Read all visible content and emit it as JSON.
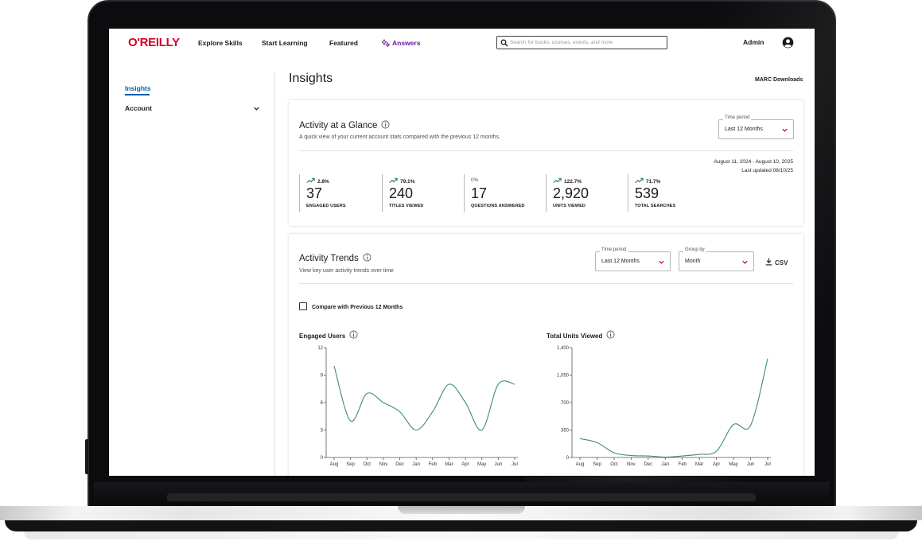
{
  "header": {
    "logo": "O'REILLY",
    "nav": [
      "Explore Skills",
      "Start Learning",
      "Featured",
      "Answers"
    ],
    "search_placeholder": "Search for books, courses, events, and more",
    "admin_label": "Admin"
  },
  "sidebar": {
    "items": [
      {
        "label": "Insights",
        "active": true
      },
      {
        "label": "Account",
        "expandable": true
      }
    ]
  },
  "page": {
    "title": "Insights",
    "marc_link": "MARC Downloads"
  },
  "glance": {
    "title": "Activity at a Glance",
    "subtitle": "A quick view of your current account stats compared with the previous 12 months.",
    "time_period": {
      "label": "Time period",
      "value": "Last 12 Months"
    },
    "date_range": "August 11, 2024 - August 10, 2025",
    "last_updated": "Last updated 08/10/25",
    "stats": [
      {
        "trend": "2.8%",
        "up": true,
        "value": "37",
        "label": "ENGAGED USERS"
      },
      {
        "trend": "79.1%",
        "up": true,
        "value": "240",
        "label": "TITLES VIEWED"
      },
      {
        "trend": "0%",
        "up": false,
        "value": "17",
        "label": "QUESTIONS ANSWERED"
      },
      {
        "trend": "122.7%",
        "up": true,
        "value": "2,920",
        "label": "UNITS VIEWED"
      },
      {
        "trend": "71.7%",
        "up": true,
        "value": "539",
        "label": "TOTAL SEARCHES"
      }
    ]
  },
  "trends": {
    "title": "Activity Trends",
    "subtitle": "View key user activity trends over time",
    "time_period": {
      "label": "Time period",
      "value": "Last 12 Months"
    },
    "group_by": {
      "label": "Group by",
      "value": "Month"
    },
    "csv_label": "CSV",
    "compare_label": "Compare with Previous 12 Months"
  },
  "colors": {
    "brand_red": "#d3002d",
    "active_blue": "#0b5cad",
    "answers_purple": "#6a1b9a",
    "trend_green": "#2e7d5b",
    "line_green": "#3d8f68"
  },
  "chart_data": [
    {
      "type": "line",
      "title": "Engaged Users",
      "categories": [
        "Aug",
        "Sep",
        "Oct",
        "Nov",
        "Dec",
        "Jan",
        "Feb",
        "Mar",
        "Apr",
        "May",
        "Jun",
        "Jul"
      ],
      "series": [
        {
          "values": [
            10,
            4,
            7,
            6,
            5,
            3,
            5,
            8,
            6,
            3,
            8,
            8
          ]
        }
      ],
      "yticks": [
        0,
        3,
        6,
        9,
        12
      ],
      "ylim": [
        0,
        12
      ],
      "grid": false
    },
    {
      "type": "line",
      "title": "Total Units Viewed",
      "categories": [
        "Aug",
        "Sep",
        "Oct",
        "Nov",
        "Dec",
        "Jan",
        "Feb",
        "Mar",
        "Apr",
        "May",
        "Jun",
        "Jul"
      ],
      "series": [
        {
          "values": [
            240,
            190,
            60,
            25,
            20,
            5,
            20,
            40,
            80,
            420,
            410,
            1260
          ]
        }
      ],
      "yticks": [
        0,
        350,
        700,
        1050,
        1400
      ],
      "ytick_labels": [
        "0",
        "350",
        "700",
        "1,050",
        "1,400"
      ],
      "ylim": [
        0,
        1400
      ],
      "grid": false
    }
  ]
}
